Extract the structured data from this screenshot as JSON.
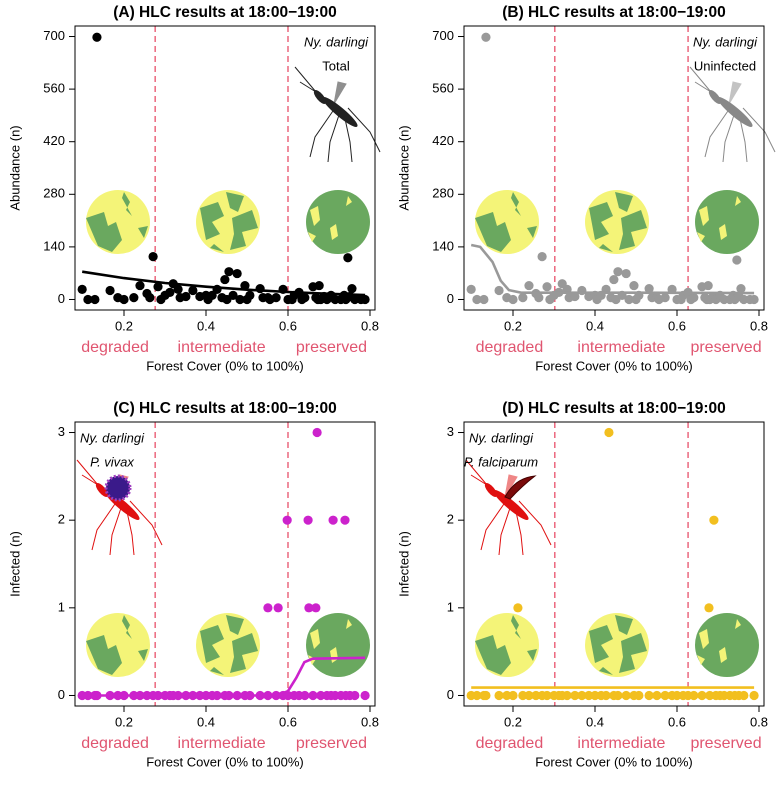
{
  "chart_data": [
    {
      "type": "scatter",
      "title": "(A) HLC results at 18:00−19:00",
      "annotations": [
        "Ny. darlingi",
        "Total"
      ],
      "annotation_corner": "topright",
      "xlabel": "Forest Cover (0% to 100%)",
      "ylabel": "Abundance (n)",
      "regions": [
        "degraded",
        "intermediate",
        "preserved"
      ],
      "xlim": [
        0.0805,
        0.8122
      ],
      "ylim": [
        -28,
        728
      ],
      "xticks": [
        0.2,
        0.4,
        0.6,
        0.8
      ],
      "yticks": [
        0,
        140,
        280,
        420,
        560,
        700
      ],
      "thresholds": [
        0.276,
        0.6
      ],
      "color": "#000000",
      "x": [
        0.134,
        0.098,
        0.112,
        0.129,
        0.166,
        0.185,
        0.2,
        0.224,
        0.239,
        0.256,
        0.263,
        0.271,
        0.283,
        0.29,
        0.3,
        0.312,
        0.32,
        0.332,
        0.337,
        0.351,
        0.368,
        0.385,
        0.4,
        0.405,
        0.415,
        0.427,
        0.439,
        0.446,
        0.451,
        0.456,
        0.466,
        0.476,
        0.483,
        0.495,
        0.507,
        0.5,
        0.532,
        0.539,
        0.551,
        0.556,
        0.571,
        0.588,
        0.6,
        0.61,
        0.615,
        0.627,
        0.634,
        0.641,
        0.661,
        0.668,
        0.673,
        0.676,
        0.68,
        0.688,
        0.695,
        0.705,
        0.715,
        0.729,
        0.737,
        0.741,
        0.746,
        0.751,
        0.763,
        0.778,
        0.788,
        0.756
      ],
      "values": [
        698,
        27,
        0,
        0,
        24,
        5,
        0,
        5,
        37,
        16,
        5,
        114,
        34,
        0,
        11,
        19,
        42,
        27,
        5,
        8,
        24,
        8,
        11,
        0,
        11,
        27,
        5,
        53,
        0,
        74,
        11,
        69,
        0,
        37,
        11,
        0,
        29,
        5,
        5,
        0,
        5,
        27,
        0,
        0,
        11,
        19,
        0,
        5,
        34,
        5,
        0,
        37,
        0,
        8,
        0,
        11,
        0,
        0,
        11,
        0,
        111,
        8,
        0,
        0,
        0,
        29
      ],
      "fit": {
        "x": [
          0.098,
          0.2,
          0.3,
          0.4,
          0.5,
          0.6,
          0.7,
          0.788
        ],
        "values": [
          74,
          57,
          44,
          34,
          26,
          20,
          15,
          12
        ]
      }
    },
    {
      "type": "scatter",
      "title": "(B) HLC results at 18:00−19:00",
      "annotations": [
        "Ny. darlingi",
        "Uninfected"
      ],
      "annotation_corner": "topright",
      "xlabel": "Forest Cover (0% to 100%)",
      "ylabel": "Abundance (n)",
      "regions": [
        "degraded",
        "intermediate",
        "preserved"
      ],
      "xlim": [
        0.0805,
        0.8122
      ],
      "ylim": [
        -28,
        728
      ],
      "xticks": [
        0.2,
        0.4,
        0.6,
        0.8
      ],
      "yticks": [
        0,
        140,
        280,
        420,
        560,
        700
      ],
      "thresholds": [
        0.302,
        0.627
      ],
      "color": "#999999",
      "x": [
        0.134,
        0.098,
        0.112,
        0.129,
        0.166,
        0.185,
        0.2,
        0.224,
        0.239,
        0.256,
        0.263,
        0.271,
        0.283,
        0.29,
        0.3,
        0.312,
        0.32,
        0.332,
        0.337,
        0.351,
        0.368,
        0.385,
        0.4,
        0.405,
        0.415,
        0.427,
        0.439,
        0.446,
        0.451,
        0.456,
        0.466,
        0.476,
        0.483,
        0.495,
        0.507,
        0.5,
        0.532,
        0.539,
        0.551,
        0.556,
        0.571,
        0.588,
        0.6,
        0.61,
        0.615,
        0.627,
        0.634,
        0.641,
        0.661,
        0.668,
        0.673,
        0.676,
        0.68,
        0.688,
        0.695,
        0.705,
        0.715,
        0.729,
        0.737,
        0.741,
        0.746,
        0.751,
        0.763,
        0.778,
        0.788,
        0.756
      ],
      "values": [
        698,
        27,
        0,
        0,
        24,
        5,
        0,
        5,
        37,
        16,
        5,
        114,
        34,
        0,
        11,
        19,
        42,
        27,
        5,
        8,
        24,
        8,
        11,
        0,
        11,
        27,
        5,
        53,
        0,
        74,
        11,
        69,
        0,
        37,
        11,
        0,
        29,
        5,
        5,
        0,
        5,
        27,
        0,
        0,
        11,
        19,
        0,
        5,
        34,
        5,
        0,
        37,
        0,
        8,
        0,
        11,
        0,
        0,
        11,
        0,
        105,
        8,
        0,
        0,
        0,
        29
      ],
      "fit": {
        "x": [
          0.098,
          0.12,
          0.15,
          0.17,
          0.19,
          0.22,
          0.3,
          0.5,
          0.788
        ],
        "values": [
          145,
          140,
          100,
          50,
          25,
          18,
          18,
          18,
          17
        ]
      }
    },
    {
      "type": "scatter",
      "title": "(C) HLC results at 18:00−19:00",
      "annotations": [
        "Ny. darlingi",
        "P. vivax"
      ],
      "annotation_corner": "topleft",
      "xlabel": "Forest Cover (0% to 100%)",
      "ylabel": "Infected (n)",
      "regions": [
        "degraded",
        "intermediate",
        "preserved"
      ],
      "xlim": [
        0.0805,
        0.8122
      ],
      "ylim": [
        -0.12,
        3.12
      ],
      "xticks": [
        0.2,
        0.4,
        0.6,
        0.8
      ],
      "yticks": [
        0,
        1,
        2,
        3
      ],
      "thresholds": [
        0.276,
        0.6
      ],
      "color": "#cc22cc",
      "x": [
        0.098,
        0.112,
        0.129,
        0.134,
        0.166,
        0.185,
        0.2,
        0.224,
        0.239,
        0.256,
        0.271,
        0.283,
        0.3,
        0.312,
        0.32,
        0.332,
        0.351,
        0.368,
        0.385,
        0.4,
        0.415,
        0.427,
        0.446,
        0.456,
        0.476,
        0.495,
        0.507,
        0.532,
        0.551,
        0.571,
        0.588,
        0.6,
        0.615,
        0.627,
        0.641,
        0.661,
        0.68,
        0.695,
        0.705,
        0.715,
        0.729,
        0.741,
        0.751,
        0.763,
        0.788,
        0.551,
        0.576,
        0.651,
        0.668,
        0.598,
        0.649,
        0.71,
        0.739,
        0.671
      ],
      "values": [
        0,
        0,
        0,
        0,
        0,
        0,
        0,
        0,
        0,
        0,
        0,
        0,
        0,
        0,
        0,
        0,
        0,
        0,
        0,
        0,
        0,
        0,
        0,
        0,
        0,
        0,
        0,
        0,
        0,
        0,
        0,
        0,
        0,
        0,
        0,
        0,
        0,
        0,
        0,
        0,
        0,
        0,
        0,
        0,
        0,
        1,
        1,
        1,
        1,
        2,
        2,
        2,
        2,
        3
      ],
      "fit": {
        "x": [
          0.098,
          0.55,
          0.58,
          0.6,
          0.62,
          0.64,
          0.66,
          0.788
        ],
        "values": [
          0,
          0,
          0.01,
          0.05,
          0.2,
          0.38,
          0.42,
          0.43
        ]
      }
    },
    {
      "type": "scatter",
      "title": "(D) HLC results at 18:00−19:00",
      "annotations": [
        "Ny. darlingi",
        "P. falciparum"
      ],
      "annotation_corner": "topleft",
      "xlabel": "Forest Cover (0% to 100%)",
      "ylabel": "Infected (n)",
      "regions": [
        "degraded",
        "intermediate",
        "preserved"
      ],
      "xlim": [
        0.0805,
        0.8122
      ],
      "ylim": [
        -0.12,
        3.12
      ],
      "xticks": [
        0.2,
        0.4,
        0.6,
        0.8
      ],
      "yticks": [
        0,
        1,
        2,
        3
      ],
      "thresholds": [
        0.302,
        0.627
      ],
      "color": "#f2bf1f",
      "x": [
        0.098,
        0.112,
        0.129,
        0.134,
        0.166,
        0.185,
        0.2,
        0.224,
        0.239,
        0.256,
        0.271,
        0.283,
        0.3,
        0.312,
        0.32,
        0.332,
        0.351,
        0.368,
        0.385,
        0.4,
        0.415,
        0.427,
        0.446,
        0.456,
        0.476,
        0.495,
        0.507,
        0.532,
        0.551,
        0.571,
        0.588,
        0.6,
        0.615,
        0.627,
        0.641,
        0.661,
        0.68,
        0.695,
        0.705,
        0.715,
        0.729,
        0.741,
        0.751,
        0.763,
        0.788,
        0.212,
        0.678,
        0.69,
        0.434
      ],
      "values": [
        0,
        0,
        0,
        0,
        0,
        0,
        0,
        0,
        0,
        0,
        0,
        0,
        0,
        0,
        0,
        0,
        0,
        0,
        0,
        0,
        0,
        0,
        0,
        0,
        0,
        0,
        0,
        0,
        0,
        0,
        0,
        0,
        0,
        0,
        0,
        0,
        0,
        0,
        0,
        0,
        0,
        0,
        0,
        0,
        0,
        1,
        1,
        2,
        3
      ],
      "fit": {
        "x": [
          0.098,
          0.788
        ],
        "values": [
          0.09,
          0.09
        ]
      }
    }
  ]
}
